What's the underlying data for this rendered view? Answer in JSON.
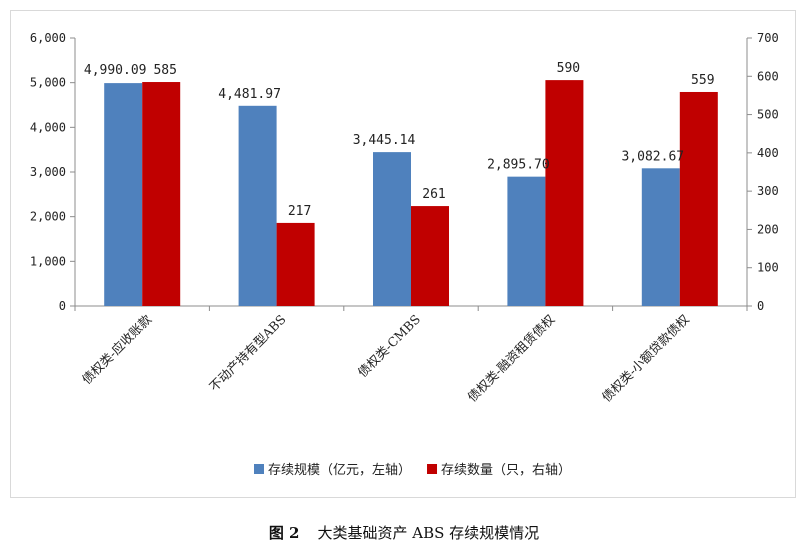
{
  "chart_data": {
    "type": "bar",
    "categories": [
      "债权类-应收账款",
      "不动产持有型ABS",
      "债权类-CMBS",
      "债权类-融资租赁债权",
      "债权类-小额贷款债权"
    ],
    "series": [
      {
        "name": "存续规模（亿元，左轴）",
        "axis": "left",
        "color": "#4f81bd",
        "values": [
          4990.09,
          4481.97,
          3445.14,
          2895.7,
          3082.67
        ],
        "labels": [
          "4,990.09",
          "4,481.97",
          "3,445.14",
          "2,895.70",
          "3,082.67"
        ]
      },
      {
        "name": "存续数量（只，右轴）",
        "axis": "right",
        "color": "#c00000",
        "values": [
          585,
          217,
          261,
          590,
          559
        ],
        "labels": [
          "585",
          "217",
          "261",
          "590",
          "559"
        ]
      }
    ],
    "y_left": {
      "range": [
        0,
        6000
      ],
      "ticks": [
        "0",
        "1,000",
        "2,000",
        "3,000",
        "4,000",
        "5,000",
        "6,000"
      ]
    },
    "y_right": {
      "range": [
        0,
        700
      ],
      "ticks": [
        "0",
        "100",
        "200",
        "300",
        "400",
        "500",
        "600",
        "700"
      ]
    },
    "grid": false,
    "legend_position": "bottom"
  },
  "caption": {
    "figure": "图 2",
    "title": "大类基础资产 ABS 存续规模情况"
  }
}
